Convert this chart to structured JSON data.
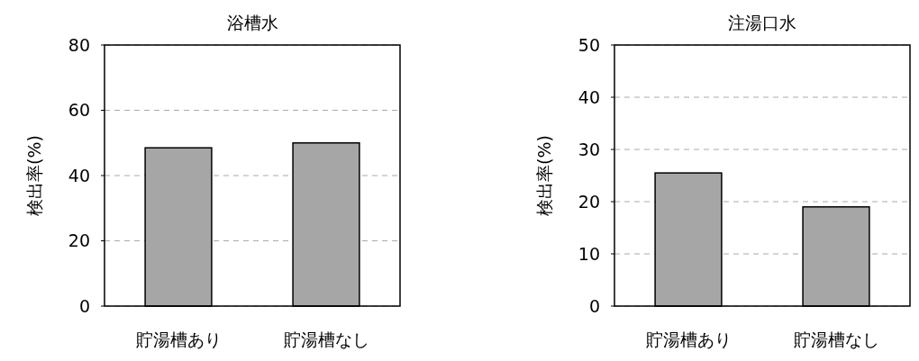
{
  "chart_data": [
    {
      "type": "bar",
      "title": "浴槽水",
      "ylabel": "検出率(%)",
      "categories": [
        "貯湯槽あり",
        "貯湯槽なし"
      ],
      "values": [
        48.5,
        50
      ],
      "color": "#a6a6a6",
      "ylim": [
        0,
        80
      ],
      "yticks": [
        0,
        20,
        40,
        60,
        80
      ],
      "grid": "y"
    },
    {
      "type": "bar",
      "title": "注湯口水",
      "ylabel": "検出率(%)",
      "categories": [
        "貯湯槽あり",
        "貯湯槽なし"
      ],
      "values": [
        25.5,
        19
      ],
      "color": "#a6a6a6",
      "ylim": [
        0,
        50
      ],
      "yticks": [
        0,
        10,
        20,
        30,
        40,
        50
      ],
      "grid": "y"
    }
  ]
}
